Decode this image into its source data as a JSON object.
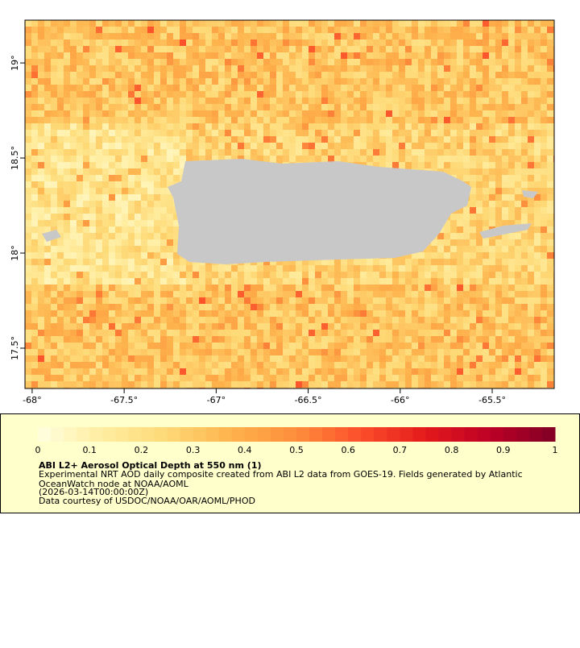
{
  "map": {
    "xaxis": {
      "lim": [
        -68.039,
        -65.163
      ],
      "ticks": [
        {
          "value": -68,
          "label": "-68°"
        },
        {
          "value": -67.5,
          "label": "-67.5°"
        },
        {
          "value": -67,
          "label": "-67°"
        },
        {
          "value": -66.5,
          "label": "-66.5°"
        },
        {
          "value": -66,
          "label": "-66°"
        },
        {
          "value": -65.5,
          "label": "-65.5°"
        }
      ]
    },
    "yaxis": {
      "lim": [
        17.288,
        19.225
      ],
      "ticks": [
        {
          "value": 17.5,
          "label": "17.5°"
        },
        {
          "value": 18,
          "label": "18°"
        },
        {
          "value": 18.5,
          "label": "18.5°"
        },
        {
          "value": 19,
          "label": "19°"
        }
      ]
    }
  },
  "colorbar": {
    "lim": [
      0,
      1
    ],
    "ticks": [
      0,
      0.1,
      0.2,
      0.3,
      0.4,
      0.5,
      0.6,
      0.7,
      0.8,
      0.9,
      1
    ],
    "steps": 40,
    "colors": [
      "#ffffe0",
      "#ffeda0",
      "#fed976",
      "#feb24c",
      "#fd8d3c",
      "#fc4e2a",
      "#e31a1c",
      "#bd0026",
      "#800026"
    ]
  },
  "legend": {
    "title": "ABI L2+ Aerosol Optical Depth at 550 nm (1)",
    "lines": [
      "Experimental NRT AOD daily composite created from ABI L2 data from GOES-19. Fields generated by Atlantic",
      "OceanWatch node at NOAA/AOML",
      "(2026-03-14T00:00:00Z)",
      "Data courtesy of USDOC/NOAA/OAR/AOML/PHOD"
    ]
  }
}
